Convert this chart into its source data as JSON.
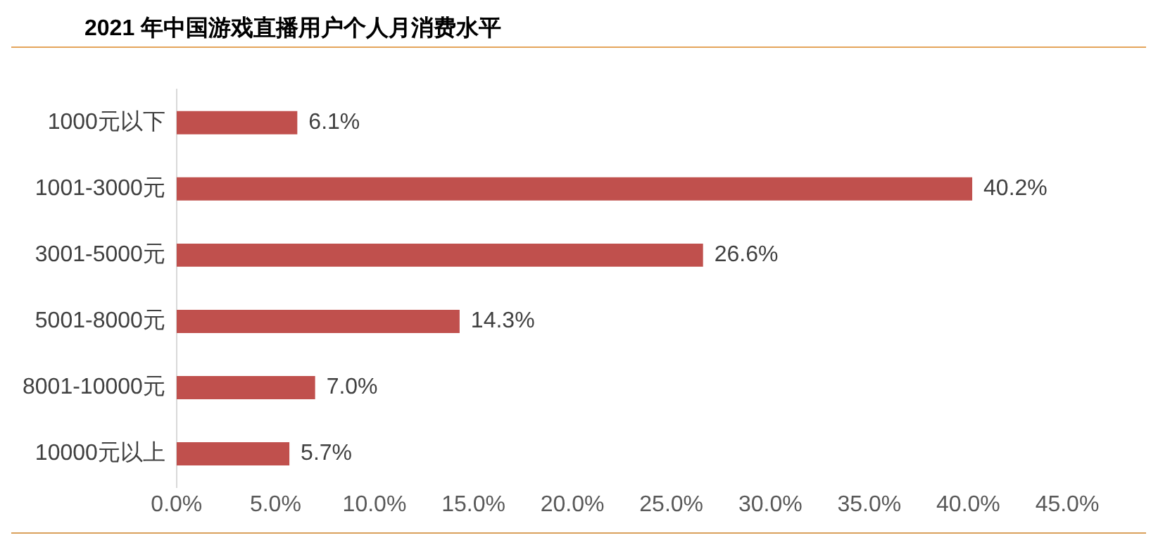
{
  "chart_data": {
    "type": "bar",
    "orientation": "horizontal",
    "title": "2021 年中国游戏直播用户个人月消费水平",
    "categories": [
      "1000元以下",
      "1001-3000元",
      "3001-5000元",
      "5001-8000元",
      "8001-10000元",
      "10000元以上"
    ],
    "values": [
      6.1,
      40.2,
      26.6,
      14.3,
      7.0,
      5.7
    ],
    "value_labels": [
      "6.1%",
      "40.2%",
      "26.6%",
      "14.3%",
      "7.0%",
      "5.7%"
    ],
    "color": "#c0504d",
    "xlim": [
      0,
      45
    ],
    "xticks": [
      {
        "value": 0,
        "label": "0.0%"
      },
      {
        "value": 5,
        "label": "5.0%"
      },
      {
        "value": 10,
        "label": "10.0%"
      },
      {
        "value": 15,
        "label": "15.0%"
      },
      {
        "value": 20,
        "label": "20.0%"
      },
      {
        "value": 25,
        "label": "25.0%"
      },
      {
        "value": 30,
        "label": "30.0%"
      },
      {
        "value": 35,
        "label": "35.0%"
      },
      {
        "value": 40,
        "label": "40.0%"
      },
      {
        "value": 45,
        "label": "45.0%"
      }
    ],
    "grid": false,
    "legend": false
  }
}
